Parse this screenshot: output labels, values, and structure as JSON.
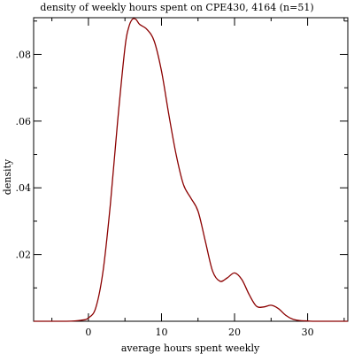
{
  "chart_data": {
    "type": "line",
    "title": "density of weekly hours spent on CPE430, 4164 (n=51)",
    "xlabel": "average hours spent weekly",
    "ylabel": "density",
    "xlim": [
      -7.5,
      35.5
    ],
    "ylim": [
      0,
      0.091
    ],
    "x_ticks": [
      0,
      10,
      20,
      30
    ],
    "x_tick_labels": [
      "0",
      "10",
      "20",
      "30"
    ],
    "x_minor_ticks": [
      -5,
      5,
      15,
      25,
      35
    ],
    "y_ticks": [
      0.02,
      0.04,
      0.06,
      0.08
    ],
    "y_tick_labels": [
      ".02",
      ".04",
      ".06",
      ".08"
    ],
    "y_minor_ticks": [
      0.01,
      0.03,
      0.05,
      0.07,
      0.09
    ],
    "grid": false,
    "legend": "none",
    "line_color": "#8b0000",
    "series": [
      {
        "x": [
          -7.5,
          -3,
          -1,
          0,
          1,
          2,
          3,
          4,
          5,
          5.5,
          6,
          6.5,
          7,
          8,
          9,
          10,
          11,
          12,
          13,
          14,
          15,
          16,
          17,
          18,
          19,
          20,
          21,
          22,
          23,
          24,
          25,
          26,
          27,
          28,
          29,
          30,
          31,
          35.5
        ],
        "y": [
          0,
          0,
          0.0003,
          0.001,
          0.004,
          0.015,
          0.035,
          0.06,
          0.082,
          0.088,
          0.0905,
          0.0905,
          0.089,
          0.0875,
          0.084,
          0.075,
          0.062,
          0.05,
          0.041,
          0.037,
          0.033,
          0.024,
          0.015,
          0.012,
          0.013,
          0.0145,
          0.0125,
          0.008,
          0.0045,
          0.0043,
          0.0048,
          0.0038,
          0.0018,
          0.0006,
          0.0002,
          0.0001,
          0,
          0
        ]
      }
    ]
  }
}
